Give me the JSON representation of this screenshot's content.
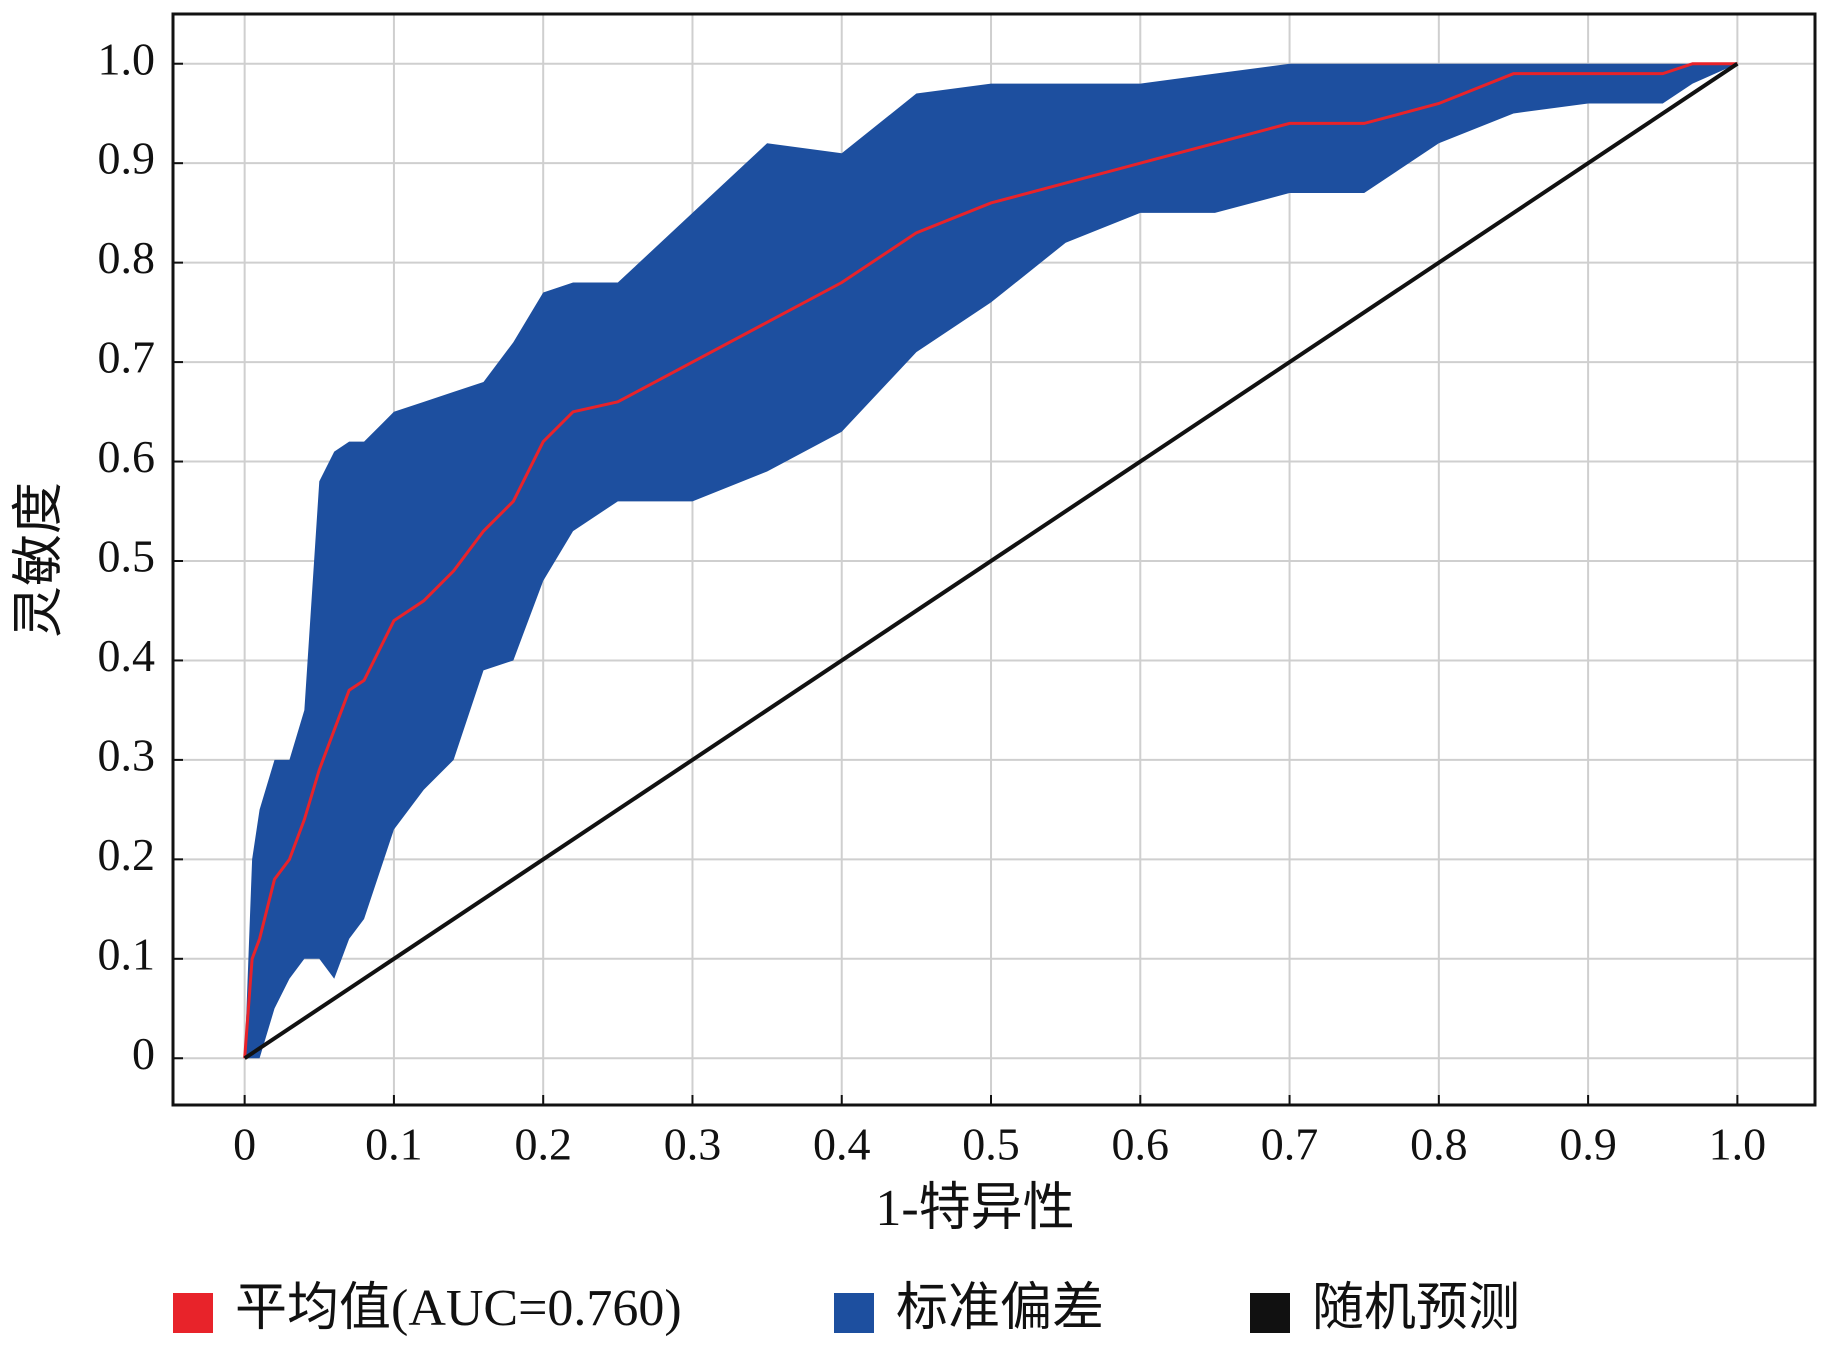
{
  "chart_data": {
    "type": "line",
    "x_label": "1-特异性",
    "y_label": "灵敏度",
    "x": [
      0,
      0.005,
      0.01,
      0.02,
      0.03,
      0.04,
      0.05,
      0.06,
      0.07,
      0.08,
      0.1,
      0.12,
      0.14,
      0.16,
      0.18,
      0.2,
      0.22,
      0.25,
      0.3,
      0.35,
      0.4,
      0.45,
      0.5,
      0.55,
      0.6,
      0.65,
      0.7,
      0.75,
      0.8,
      0.85,
      0.9,
      0.95,
      0.97,
      1
    ],
    "series": [
      {
        "name": "平均值(AUC=0.760)",
        "color": "#e8232a",
        "values": [
          0,
          0.1,
          0.12,
          0.18,
          0.2,
          0.24,
          0.29,
          0.33,
          0.37,
          0.38,
          0.44,
          0.46,
          0.49,
          0.53,
          0.56,
          0.62,
          0.65,
          0.66,
          0.7,
          0.74,
          0.78,
          0.83,
          0.86,
          0.88,
          0.9,
          0.92,
          0.94,
          0.94,
          0.96,
          0.99,
          0.99,
          0.99,
          1,
          1
        ]
      },
      {
        "name": "标准偏差",
        "color": "#1d4f9f",
        "upper": [
          0,
          0.2,
          0.25,
          0.3,
          0.3,
          0.35,
          0.58,
          0.61,
          0.62,
          0.62,
          0.65,
          0.66,
          0.67,
          0.68,
          0.72,
          0.77,
          0.78,
          0.78,
          0.85,
          0.92,
          0.91,
          0.97,
          0.98,
          0.98,
          0.98,
          0.99,
          1,
          1,
          1,
          1,
          1,
          1,
          1,
          1
        ],
        "lower": [
          0,
          0,
          0,
          0.05,
          0.08,
          0.1,
          0.1,
          0.08,
          0.12,
          0.14,
          0.23,
          0.27,
          0.3,
          0.39,
          0.4,
          0.48,
          0.53,
          0.56,
          0.56,
          0.59,
          0.63,
          0.71,
          0.76,
          0.82,
          0.85,
          0.85,
          0.87,
          0.87,
          0.92,
          0.95,
          0.96,
          0.96,
          0.98,
          1
        ]
      },
      {
        "name": "随机预测",
        "color": "#111111",
        "x": [
          0,
          1
        ],
        "values": [
          0,
          1
        ]
      }
    ],
    "xlim": [
      -0.048,
      1.052
    ],
    "ylim": [
      -0.047,
      1.05
    ],
    "xticks": [
      0,
      0.1,
      0.2,
      0.3,
      0.4,
      0.5,
      0.6,
      0.7,
      0.8,
      0.9,
      {
        "value": 1,
        "label": "1.0"
      }
    ],
    "yticks": [
      0,
      0.1,
      0.2,
      0.3,
      0.4,
      0.5,
      0.6,
      0.7,
      0.8,
      0.9,
      {
        "value": 1,
        "label": "1.0"
      }
    ],
    "grid": true
  }
}
